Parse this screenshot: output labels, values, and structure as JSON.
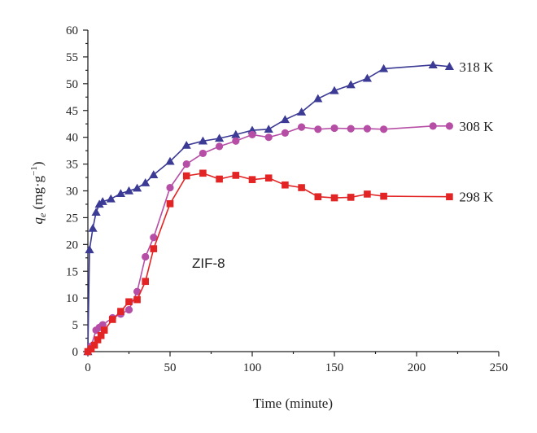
{
  "chart_data": {
    "type": "line",
    "xlabel": "Time (minute)",
    "ylabel": {
      "base": "q",
      "subscript": "e",
      "unit_prefix": " (mg·g",
      "unit_superscript": "−1",
      "unit_suffix": ")"
    },
    "xlim": [
      0,
      250
    ],
    "ylim": [
      0,
      60
    ],
    "x_ticks": [
      0,
      50,
      100,
      150,
      200,
      250
    ],
    "y_ticks": [
      0,
      5,
      10,
      15,
      20,
      25,
      30,
      35,
      40,
      45,
      50,
      55,
      60
    ],
    "grid": false,
    "annotation": "ZIF-8",
    "series": [
      {
        "name": "318 K",
        "color": "#3b3a94",
        "marker": "triangle",
        "x": [
          0,
          1,
          3,
          5,
          7,
          9,
          14,
          20,
          25,
          30,
          35,
          40,
          50,
          60,
          70,
          80,
          90,
          100,
          110,
          120,
          130,
          140,
          150,
          160,
          170,
          180,
          210,
          220
        ],
        "y": [
          0,
          19,
          23,
          26,
          27.5,
          28,
          28.5,
          29.5,
          30,
          30.5,
          31.5,
          33,
          35.5,
          38.5,
          39.3,
          39.8,
          40.5,
          41.3,
          41.5,
          43.3,
          44.7,
          47.2,
          48.7,
          49.8,
          51,
          52.8,
          53.5,
          53.2
        ]
      },
      {
        "name": "308 K",
        "color": "#b64ea6",
        "marker": "circle",
        "x": [
          0,
          2,
          5,
          7,
          9,
          15,
          20,
          25,
          30,
          35,
          40,
          50,
          60,
          70,
          80,
          90,
          100,
          110,
          120,
          130,
          140,
          150,
          160,
          170,
          180,
          210,
          220
        ],
        "y": [
          0,
          1,
          4,
          4.5,
          5,
          6.3,
          7,
          7.8,
          11.2,
          17.7,
          21.3,
          30.6,
          35,
          37,
          38.3,
          39.3,
          40.5,
          40,
          40.8,
          41.9,
          41.5,
          41.7,
          41.6,
          41.6,
          41.5,
          42.1,
          42.1
        ]
      },
      {
        "name": "298 K",
        "color": "#e32424",
        "marker": "square",
        "x": [
          0,
          2,
          4,
          6,
          8,
          10,
          15,
          20,
          25,
          30,
          35,
          40,
          50,
          60,
          70,
          80,
          90,
          100,
          110,
          120,
          130,
          140,
          150,
          160,
          170,
          180,
          220
        ],
        "y": [
          0,
          0.5,
          1.2,
          2.2,
          3,
          4,
          6,
          7.5,
          9.3,
          9.7,
          13.1,
          19.2,
          27.6,
          32.8,
          33.3,
          32.2,
          32.9,
          32.1,
          32.4,
          31.1,
          30.6,
          28.9,
          28.7,
          28.8,
          29.4,
          29,
          28.9
        ]
      }
    ]
  }
}
